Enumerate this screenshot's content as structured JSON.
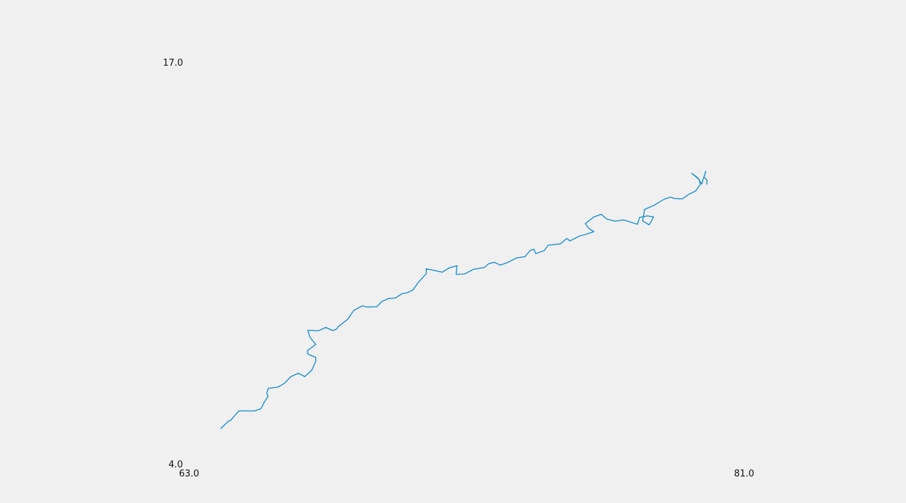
{
  "chart_data": {
    "type": "line",
    "title": "",
    "xlabel": "",
    "ylabel": "",
    "xlim": [
      63.0,
      81.0
    ],
    "ylim": [
      4.0,
      17.0
    ],
    "grid": false,
    "x_tick_labels": [
      "63.0",
      "81.0"
    ],
    "y_tick_labels": [
      "4.0",
      "17.0"
    ],
    "series": [
      {
        "color": "#1b8fcf",
        "points": [
          [
            64.04,
            5.19
          ],
          [
            64.3,
            5.44
          ],
          [
            64.35,
            5.44
          ],
          [
            64.56,
            5.69
          ],
          [
            64.63,
            5.76
          ],
          [
            65.13,
            5.76
          ],
          [
            65.34,
            5.83
          ],
          [
            65.46,
            6.06
          ],
          [
            65.57,
            6.23
          ],
          [
            65.53,
            6.34
          ],
          [
            65.58,
            6.49
          ],
          [
            65.89,
            6.53
          ],
          [
            66.1,
            6.65
          ],
          [
            66.31,
            6.87
          ],
          [
            66.56,
            6.98
          ],
          [
            66.76,
            6.87
          ],
          [
            66.99,
            7.08
          ],
          [
            67.12,
            7.37
          ],
          [
            67.12,
            7.49
          ],
          [
            66.86,
            7.6
          ],
          [
            66.85,
            7.71
          ],
          [
            67.12,
            7.91
          ],
          [
            66.93,
            8.14
          ],
          [
            66.86,
            8.37
          ],
          [
            67.2,
            8.35
          ],
          [
            67.44,
            8.46
          ],
          [
            67.67,
            8.36
          ],
          [
            67.8,
            8.41
          ],
          [
            67.85,
            8.49
          ],
          [
            68.15,
            8.72
          ],
          [
            68.35,
            9.01
          ],
          [
            68.63,
            9.16
          ],
          [
            68.78,
            9.12
          ],
          [
            69.1,
            9.13
          ],
          [
            69.26,
            9.3
          ],
          [
            69.49,
            9.4
          ],
          [
            69.7,
            9.41
          ],
          [
            69.91,
            9.55
          ],
          [
            70.1,
            9.59
          ],
          [
            70.28,
            9.68
          ],
          [
            70.43,
            9.9
          ],
          [
            70.7,
            10.2
          ],
          [
            70.7,
            10.36
          ],
          [
            71.22,
            10.25
          ],
          [
            71.45,
            10.39
          ],
          [
            71.7,
            10.46
          ],
          [
            71.67,
            10.18
          ],
          [
            71.94,
            10.19
          ],
          [
            72.23,
            10.34
          ],
          [
            72.59,
            10.4
          ],
          [
            72.72,
            10.52
          ],
          [
            72.91,
            10.57
          ],
          [
            73.1,
            10.48
          ],
          [
            73.34,
            10.56
          ],
          [
            73.63,
            10.71
          ],
          [
            73.9,
            10.75
          ],
          [
            74.08,
            10.96
          ],
          [
            74.2,
            10.99
          ],
          [
            74.25,
            10.85
          ],
          [
            74.53,
            10.95
          ],
          [
            74.65,
            11.12
          ],
          [
            75.06,
            11.17
          ],
          [
            75.26,
            11.34
          ],
          [
            75.36,
            11.26
          ],
          [
            75.65,
            11.41
          ],
          [
            75.84,
            11.46
          ],
          [
            76.14,
            11.56
          ],
          [
            75.97,
            11.67
          ],
          [
            75.86,
            11.82
          ],
          [
            76.14,
            12.04
          ],
          [
            76.38,
            12.12
          ],
          [
            76.55,
            11.97
          ],
          [
            76.82,
            11.9
          ],
          [
            77.1,
            11.94
          ],
          [
            77.55,
            11.8
          ],
          [
            77.62,
            12.02
          ],
          [
            77.87,
            12.07
          ],
          [
            78.07,
            12.04
          ],
          [
            77.93,
            11.78
          ],
          [
            77.72,
            11.91
          ],
          [
            77.78,
            12.28
          ],
          [
            78.1,
            12.42
          ],
          [
            78.28,
            12.53
          ],
          [
            78.42,
            12.61
          ],
          [
            78.62,
            12.68
          ],
          [
            78.76,
            12.63
          ],
          [
            79.01,
            12.62
          ],
          [
            79.22,
            12.77
          ],
          [
            79.44,
            12.88
          ],
          [
            79.59,
            13.09
          ],
          [
            79.55,
            13.25
          ],
          [
            79.31,
            13.45
          ],
          [
            79.51,
            13.3
          ],
          [
            79.64,
            13.1
          ],
          [
            79.67,
            13.22
          ],
          [
            79.77,
            13.52
          ],
          [
            79.71,
            13.33
          ],
          [
            79.81,
            13.22
          ],
          [
            79.8,
            13.1
          ]
        ]
      }
    ]
  },
  "colors": {
    "background": "#f0f0f0",
    "line": "#1b8fcf",
    "text": "#111111"
  }
}
